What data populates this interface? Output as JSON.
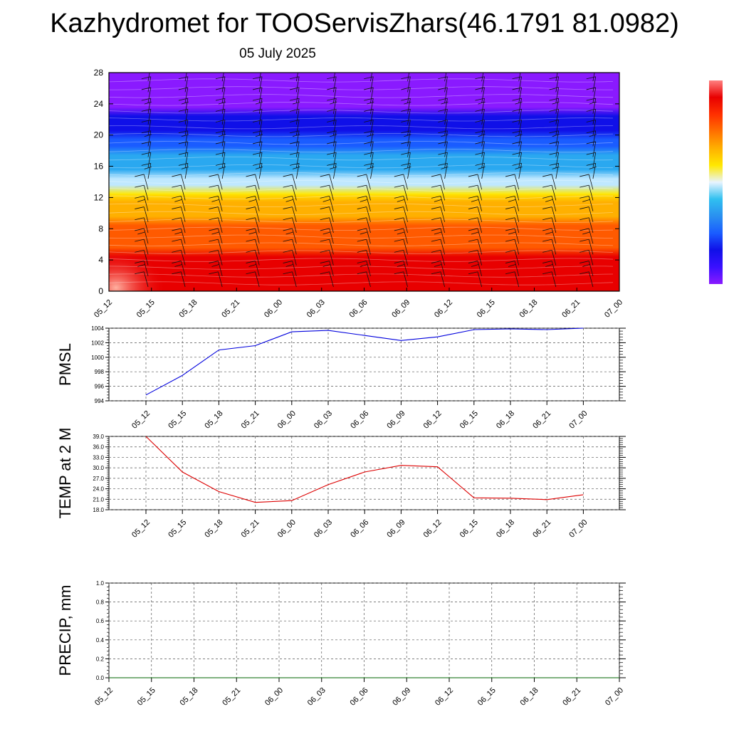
{
  "title": "Kazhydromet for TOOServisZhars(46.1791 81.0982)",
  "subtitle": "05 July 2025",
  "chart_data": [
    {
      "type": "heatmap",
      "name": "cross-section",
      "x": [
        "05_12",
        "05_15",
        "05_18",
        "05_21",
        "06_00",
        "06_03",
        "06_06",
        "06_09",
        "06_12",
        "06_15",
        "06_18",
        "06_21",
        "07_00"
      ],
      "ylim": [
        0,
        28
      ],
      "yticks": [
        "0",
        "4",
        "8",
        "12",
        "16",
        "20",
        "24",
        "28"
      ],
      "bands": [
        {
          "y": [
            0,
            5
          ],
          "color": "#e80000"
        },
        {
          "y": [
            5,
            9
          ],
          "color": "#ff5a00"
        },
        {
          "y": [
            9,
            12
          ],
          "color": "#ffb000"
        },
        {
          "y": [
            12,
            13
          ],
          "color": "#ffe800"
        },
        {
          "y": [
            13,
            15
          ],
          "color": "#bfe8ff"
        },
        {
          "y": [
            15,
            18
          ],
          "color": "#2aa8f0"
        },
        {
          "y": [
            18,
            20
          ],
          "color": "#1a5cff"
        },
        {
          "y": [
            20,
            23
          ],
          "color": "#1010e8"
        },
        {
          "y": [
            23,
            28
          ],
          "color": "#8a1aff"
        }
      ],
      "colorbar": [
        "#8a1aff",
        "#3a10ff",
        "#1010e8",
        "#1a5cff",
        "#2a90f0",
        "#30c0f0",
        "#e8f4ff",
        "#ffe800",
        "#ffb000",
        "#ff7000",
        "#ff3000",
        "#e80000",
        "#ff8080"
      ]
    },
    {
      "type": "line",
      "name": "pmsl",
      "ylabel": "PMSL",
      "x": [
        "05_12",
        "05_15",
        "05_18",
        "05_21",
        "06_00",
        "06_03",
        "06_06",
        "06_09",
        "06_12",
        "06_15",
        "06_18",
        "06_21",
        "07_00"
      ],
      "values": [
        994.8,
        997.5,
        1001.0,
        1001.6,
        1003.5,
        1003.7,
        1003.0,
        1002.3,
        1002.8,
        1003.8,
        1003.9,
        1003.8,
        1004.0
      ],
      "ylim": [
        994,
        1004
      ],
      "yticks": [
        "994",
        "996",
        "998",
        "1000",
        "1002",
        "1004"
      ],
      "color": "#0000dd"
    },
    {
      "type": "line",
      "name": "temp",
      "ylabel": "TEMP at 2 M",
      "x": [
        "05_12",
        "05_15",
        "05_18",
        "05_21",
        "06_00",
        "06_03",
        "06_06",
        "06_09",
        "06_12",
        "06_15",
        "06_18",
        "06_21",
        "07_00"
      ],
      "values": [
        39.0,
        28.8,
        23.2,
        20.1,
        20.6,
        25.2,
        28.8,
        30.7,
        30.3,
        21.4,
        21.3,
        20.9,
        22.3
      ],
      "ylim": [
        18,
        39
      ],
      "yticks": [
        "18.0",
        "21.0",
        "24.0",
        "27.0",
        "30.0",
        "33.0",
        "36.0",
        "39.0"
      ],
      "color": "#dd0000"
    },
    {
      "type": "line",
      "name": "precip",
      "ylabel": "PRECIP, mm",
      "x": [
        "05_12",
        "05_15",
        "05_18",
        "05_21",
        "06_00",
        "06_03",
        "06_06",
        "06_09",
        "06_12",
        "06_15",
        "06_18",
        "06_21",
        "07_00"
      ],
      "values": [
        0,
        0,
        0,
        0,
        0,
        0,
        0,
        0,
        0,
        0,
        0,
        0,
        0
      ],
      "ylim": [
        0,
        1
      ],
      "yticks": [
        "0.0",
        "0.2",
        "0.4",
        "0.6",
        "0.8",
        "1.0"
      ],
      "color": "#006600"
    }
  ]
}
